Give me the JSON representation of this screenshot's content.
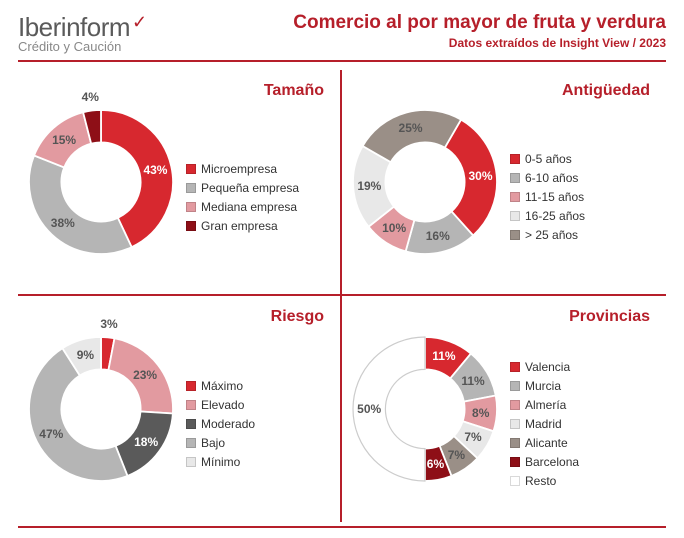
{
  "header": {
    "logo_main": "Iberinform",
    "logo_sub": "Crédito y Caución",
    "title": "Comercio al por mayor de fruta y verdura",
    "subtitle": "Datos extraídos de Insight View / 2023"
  },
  "colors": {
    "brand_red": "#b61f2a",
    "grey_text": "#5a5a5a"
  },
  "panels": [
    {
      "key": "tamano",
      "title": "Tamaño",
      "inner_radius": 0.55,
      "start_angle": -90,
      "slices": [
        {
          "label": "Microempresa",
          "value": 43,
          "color": "#d7282f",
          "pct": "43%",
          "label_color": "#ffffff"
        },
        {
          "label": "Pequeña empresa",
          "value": 38,
          "color": "#b5b5b5",
          "pct": "38%",
          "label_color": "#555555"
        },
        {
          "label": "Mediana empresa",
          "value": 15,
          "color": "#e29aa0",
          "pct": "15%",
          "label_color": "#555555"
        },
        {
          "label": "Gran empresa",
          "value": 4,
          "color": "#8e0f17",
          "pct": "4%",
          "label_color": "#555555",
          "label_out": true
        }
      ]
    },
    {
      "key": "antiguedad",
      "title": "Antigüedad",
      "inner_radius": 0.55,
      "start_angle": -60,
      "slices": [
        {
          "label": "0-5 años",
          "value": 30,
          "color": "#d7282f",
          "pct": "30%",
          "label_color": "#ffffff"
        },
        {
          "label": "6-10 años",
          "value": 16,
          "color": "#b5b5b5",
          "pct": "16%",
          "label_color": "#555555"
        },
        {
          "label": "11-15 años",
          "value": 10,
          "color": "#e29aa0",
          "pct": "10%",
          "label_color": "#555555"
        },
        {
          "label": "16-25 años",
          "value": 19,
          "color": "#e8e8e8",
          "pct": "19%",
          "label_color": "#555555"
        },
        {
          "label": "> 25 años",
          "value": 25,
          "color": "#9a8f87",
          "pct": "25%",
          "label_color": "#555555"
        }
      ]
    },
    {
      "key": "riesgo",
      "title": "Riesgo",
      "inner_radius": 0.55,
      "start_angle": -90,
      "slices": [
        {
          "label": "Máximo",
          "value": 3,
          "color": "#d7282f",
          "pct": "3%",
          "label_color": "#555555",
          "label_out": true
        },
        {
          "label": "Elevado",
          "value": 23,
          "color": "#e29aa0",
          "pct": "23%",
          "label_color": "#555555"
        },
        {
          "label": "Moderado",
          "value": 18,
          "color": "#5a5a5a",
          "pct": "18%",
          "label_color": "#ffffff"
        },
        {
          "label": "Bajo",
          "value": 47,
          "color": "#b5b5b5",
          "pct": "47%",
          "label_color": "#555555"
        },
        {
          "label": "Mínimo",
          "value": 9,
          "color": "#e8e8e8",
          "pct": "9%",
          "label_color": "#555555"
        }
      ]
    },
    {
      "key": "provincias",
      "title": "Provincias",
      "inner_radius": 0.55,
      "start_angle": -90,
      "slices": [
        {
          "label": "Valencia",
          "value": 11,
          "color": "#d7282f",
          "pct": "11%",
          "label_color": "#ffffff"
        },
        {
          "label": "Murcia",
          "value": 11,
          "color": "#b5b5b5",
          "pct": "11%",
          "label_color": "#555555"
        },
        {
          "label": "Almería",
          "value": 8,
          "color": "#e29aa0",
          "pct": "8%",
          "label_color": "#555555"
        },
        {
          "label": "Madrid",
          "value": 7,
          "color": "#e8e8e8",
          "pct": "7%",
          "label_color": "#555555"
        },
        {
          "label": "Alicante",
          "value": 7,
          "color": "#9a8f87",
          "pct": "7%",
          "label_color": "#555555"
        },
        {
          "label": "Barcelona",
          "value": 6,
          "color": "#8e0f17",
          "pct": "6%",
          "label_color": "#ffffff"
        },
        {
          "label": "Resto",
          "value": 50,
          "color": "#ffffff",
          "pct": "50%",
          "label_color": "#555555",
          "stroke": "#cccccc"
        }
      ]
    }
  ]
}
